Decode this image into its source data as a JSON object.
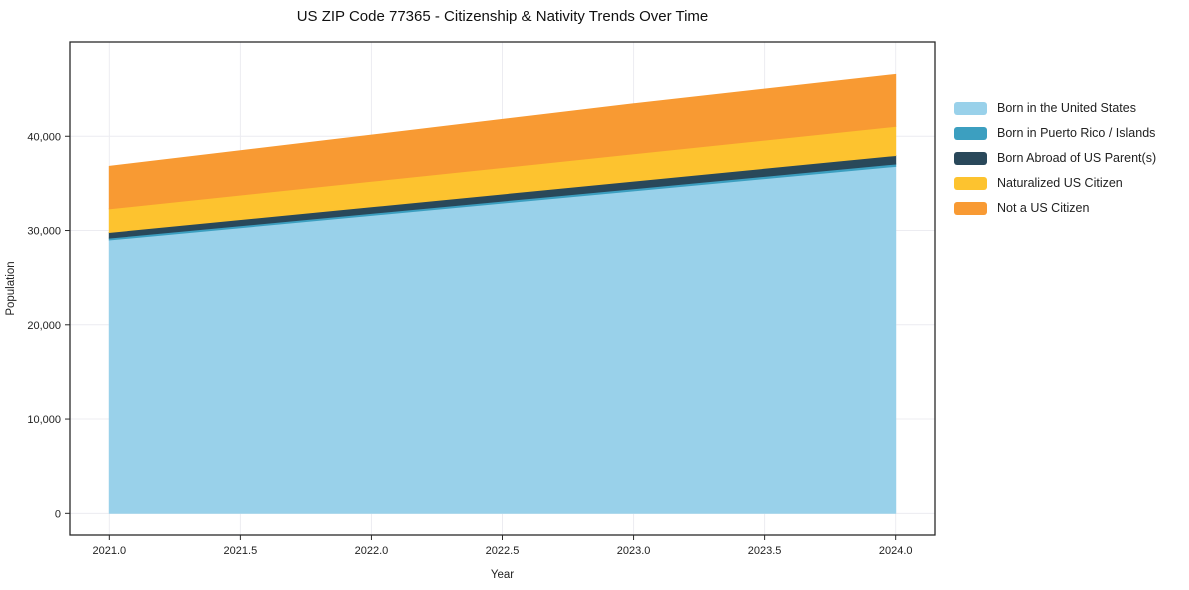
{
  "title": "US ZIP Code 77365 - Citizenship & Nativity Trends Over Time",
  "axes": {
    "xlabel": "Year",
    "ylabel": "Population"
  },
  "chart_data": {
    "type": "area",
    "stacked": true,
    "title": "US ZIP Code 77365 - Citizenship & Nativity Trends Over Time",
    "xlabel": "Year",
    "ylabel": "Population",
    "x": [
      2021,
      2022,
      2023,
      2024
    ],
    "series": [
      {
        "name": "Born in the United States",
        "color": "#99d1ea",
        "values": [
          29000,
          31600,
          34200,
          36800
        ]
      },
      {
        "name": "Born in Puerto Rico / Islands",
        "color": "#3c9fc0",
        "values": [
          200,
          220,
          240,
          260
        ]
      },
      {
        "name": "Born Abroad of US Parent(s)",
        "color": "#29485a",
        "values": [
          600,
          700,
          800,
          900
        ]
      },
      {
        "name": "Naturalized US Citizen",
        "color": "#fdc32f",
        "values": [
          2500,
          2700,
          2900,
          3100
        ]
      },
      {
        "name": "Not a US Citizen",
        "color": "#f89a33",
        "values": [
          4500,
          4900,
          5300,
          5500
        ]
      }
    ],
    "xlim": [
      2020.85,
      2024.15
    ],
    "ylim": [
      -2300,
      50000
    ],
    "xticks": [
      2021.0,
      2021.5,
      2022.0,
      2022.5,
      2023.0,
      2023.5,
      2024.0
    ],
    "yticks": [
      0,
      10000,
      20000,
      30000,
      40000
    ],
    "grid": true,
    "grid_color": "#ececf1",
    "border_color": "#2a2a2a",
    "legend_position": "right-outside"
  }
}
